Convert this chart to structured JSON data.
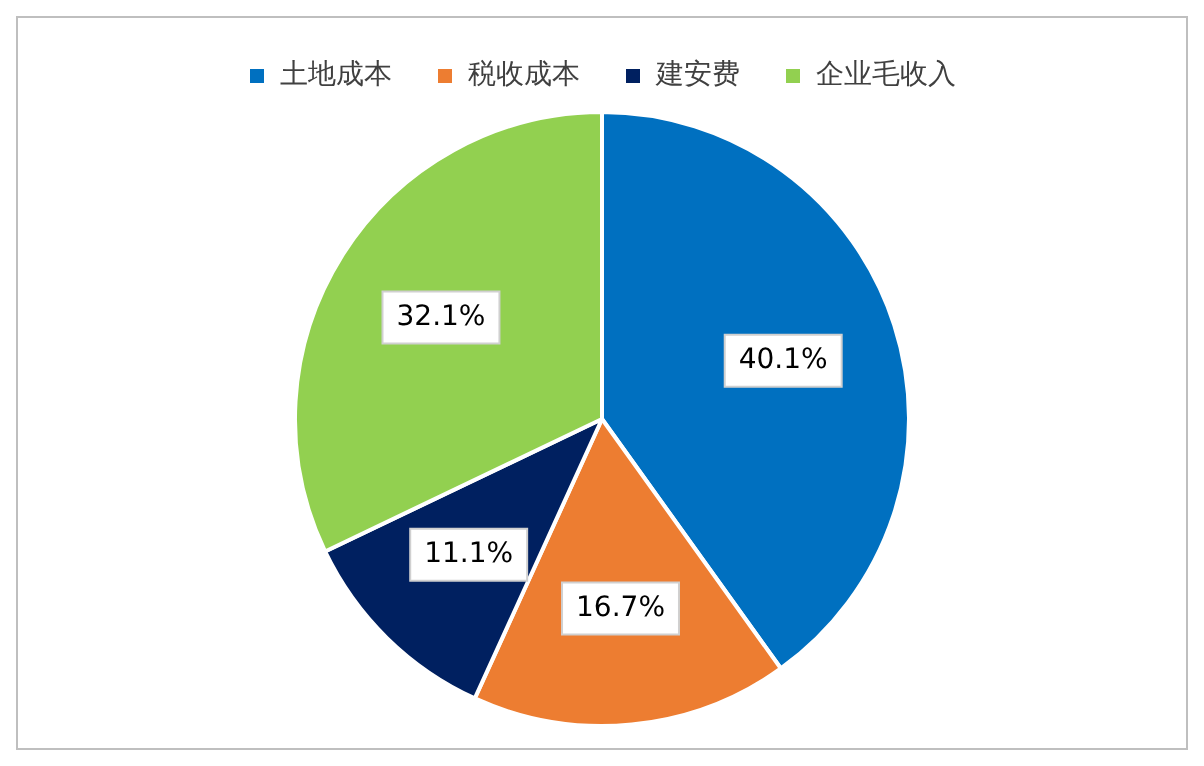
{
  "chart_data": {
    "type": "pie",
    "categories": [
      "土地成本",
      "税收成本",
      "建安费",
      "企业毛收入"
    ],
    "values": [
      40.1,
      16.7,
      11.1,
      32.1
    ],
    "colors": [
      "#0070c0",
      "#ed7d31",
      "#002060",
      "#92d050"
    ],
    "value_labels": [
      "40.1%",
      "16.7%",
      "11.1%",
      "32.1%"
    ],
    "legend": "top"
  }
}
